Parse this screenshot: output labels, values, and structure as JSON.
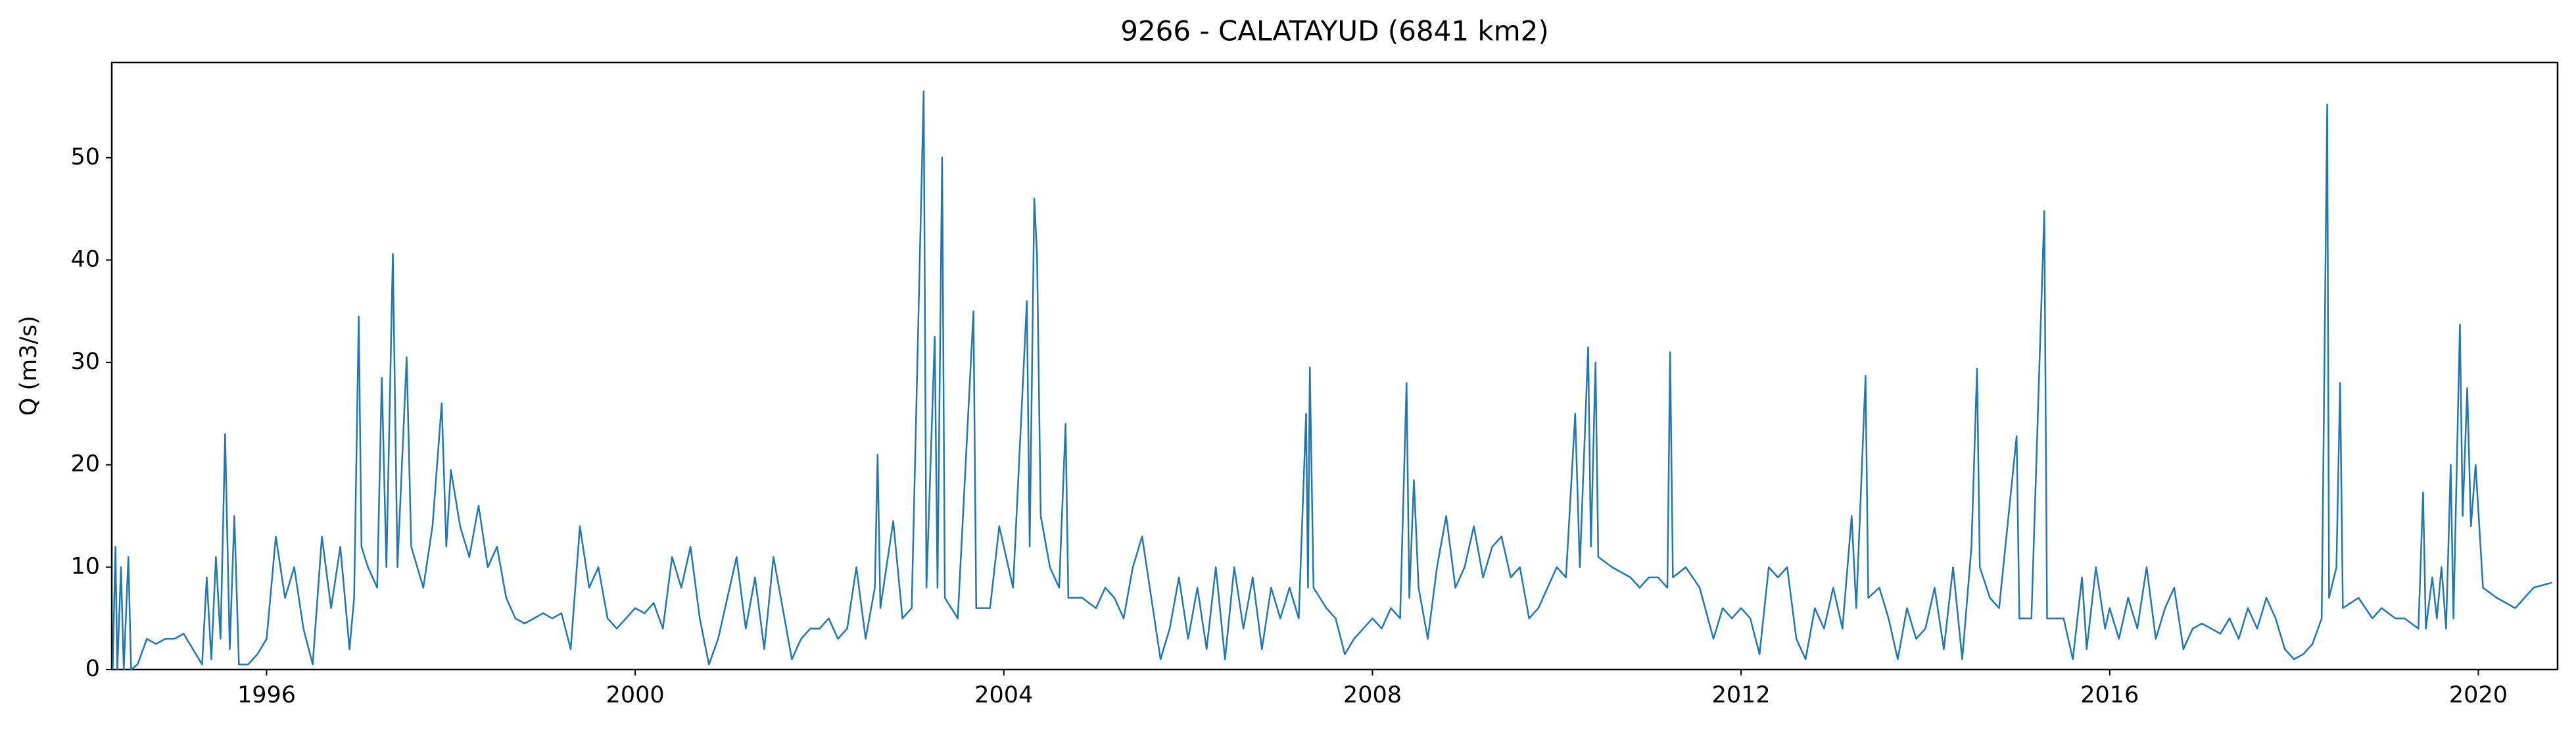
{
  "chart_data": {
    "type": "line",
    "title": "9266 - CALATAYUD (6841 km2)",
    "y_label": "Q (m3/s)",
    "color": "#1f77b4",
    "xlim": [
      1994.32,
      2020.86
    ],
    "xticks": [
      1996,
      2000,
      2004,
      2008,
      2012,
      2016,
      2020
    ],
    "ylim": [
      0,
      59.3
    ],
    "yticks": [
      0,
      10,
      20,
      30,
      40,
      50
    ],
    "x": [
      1994.33,
      1994.36,
      1994.38,
      1994.42,
      1994.45,
      1994.5,
      1994.53,
      1994.6,
      1994.7,
      1994.8,
      1994.9,
      1995.0,
      1995.1,
      1995.2,
      1995.3,
      1995.35,
      1995.4,
      1995.45,
      1995.5,
      1995.55,
      1995.6,
      1995.65,
      1995.7,
      1995.8,
      1995.9,
      1996.0,
      1996.1,
      1996.2,
      1996.3,
      1996.4,
      1996.5,
      1996.6,
      1996.7,
      1996.8,
      1996.9,
      1996.95,
      1997.0,
      1997.03,
      1997.1,
      1997.2,
      1997.25,
      1997.3,
      1997.37,
      1997.42,
      1997.52,
      1997.57,
      1997.7,
      1997.8,
      1997.9,
      1997.95,
      1998.0,
      1998.1,
      1998.2,
      1998.3,
      1998.4,
      1998.5,
      1998.6,
      1998.7,
      1998.8,
      1998.9,
      1999.0,
      1999.1,
      1999.2,
      1999.3,
      1999.4,
      1999.5,
      1999.6,
      1999.7,
      1999.8,
      1999.9,
      2000.0,
      2000.1,
      2000.2,
      2000.3,
      2000.4,
      2000.5,
      2000.6,
      2000.7,
      2000.8,
      2000.9,
      2001.0,
      2001.1,
      2001.2,
      2001.3,
      2001.4,
      2001.5,
      2001.6,
      2001.7,
      2001.8,
      2001.9,
      2002.0,
      2002.1,
      2002.2,
      2002.3,
      2002.4,
      2002.5,
      2002.6,
      2002.63,
      2002.66,
      2002.8,
      2002.9,
      2003.0,
      2003.13,
      2003.16,
      2003.25,
      2003.28,
      2003.33,
      2003.36,
      2003.5,
      2003.67,
      2003.7,
      2003.85,
      2003.95,
      2004.1,
      2004.25,
      2004.28,
      2004.33,
      2004.36,
      2004.4,
      2004.5,
      2004.6,
      2004.67,
      2004.7,
      2004.85,
      2005.0,
      2005.1,
      2005.2,
      2005.3,
      2005.4,
      2005.5,
      2005.6,
      2005.7,
      2005.8,
      2005.9,
      2006.0,
      2006.1,
      2006.2,
      2006.3,
      2006.4,
      2006.5,
      2006.6,
      2006.7,
      2006.8,
      2006.9,
      2007.0,
      2007.1,
      2007.2,
      2007.28,
      2007.3,
      2007.32,
      2007.36,
      2007.5,
      2007.6,
      2007.7,
      2007.8,
      2007.9,
      2008.0,
      2008.1,
      2008.2,
      2008.3,
      2008.37,
      2008.4,
      2008.45,
      2008.5,
      2008.6,
      2008.7,
      2008.8,
      2008.9,
      2009.0,
      2009.1,
      2009.2,
      2009.3,
      2009.4,
      2009.5,
      2009.6,
      2009.7,
      2009.8,
      2009.9,
      2010.0,
      2010.1,
      2010.2,
      2010.25,
      2010.34,
      2010.37,
      2010.42,
      2010.45,
      2010.6,
      2010.8,
      2010.9,
      2011.0,
      2011.1,
      2011.2,
      2011.23,
      2011.26,
      2011.4,
      2011.55,
      2011.7,
      2011.8,
      2011.9,
      2012.0,
      2012.1,
      2012.2,
      2012.3,
      2012.4,
      2012.5,
      2012.6,
      2012.7,
      2012.8,
      2012.9,
      2013.0,
      2013.1,
      2013.2,
      2013.25,
      2013.35,
      2013.38,
      2013.5,
      2013.6,
      2013.7,
      2013.8,
      2013.9,
      2014.0,
      2014.1,
      2014.2,
      2014.3,
      2014.4,
      2014.5,
      2014.56,
      2014.59,
      2014.7,
      2014.8,
      2014.99,
      2015.02,
      2015.15,
      2015.29,
      2015.32,
      2015.5,
      2015.6,
      2015.7,
      2015.75,
      2015.85,
      2015.95,
      2016.0,
      2016.1,
      2016.2,
      2016.3,
      2016.4,
      2016.5,
      2016.6,
      2016.7,
      2016.8,
      2016.9,
      2017.0,
      2017.1,
      2017.2,
      2017.3,
      2017.4,
      2017.5,
      2017.6,
      2017.7,
      2017.8,
      2017.9,
      2018.0,
      2018.1,
      2018.2,
      2018.3,
      2018.36,
      2018.38,
      2018.46,
      2018.5,
      2018.53,
      2018.7,
      2018.85,
      2018.95,
      2019.1,
      2019.2,
      2019.35,
      2019.4,
      2019.43,
      2019.5,
      2019.55,
      2019.6,
      2019.65,
      2019.7,
      2019.73,
      2019.8,
      2019.83,
      2019.88,
      2019.92,
      2019.97,
      2020.05,
      2020.2,
      2020.4,
      2020.6,
      2020.8
    ],
    "values": [
      0,
      12,
      0,
      10,
      0,
      11,
      0,
      0.5,
      3,
      2.5,
      3,
      3,
      3.5,
      2,
      0.5,
      9,
      1,
      11,
      3,
      23,
      2,
      15,
      0.5,
      0.5,
      1.5,
      3,
      13,
      7,
      10,
      4,
      0.5,
      13,
      6,
      12,
      2,
      7,
      34.5,
      12,
      10,
      8,
      28.5,
      10,
      40.6,
      10,
      30.5,
      12,
      8,
      14,
      26,
      12,
      19.5,
      14,
      11,
      16,
      10,
      12,
      7,
      5,
      4.5,
      5,
      5.5,
      5,
      5.5,
      2,
      14,
      8,
      10,
      5,
      4,
      5,
      6,
      5.5,
      6.5,
      4,
      11,
      8,
      12,
      5,
      0.5,
      3,
      7,
      11,
      4,
      9,
      2,
      11,
      6,
      1,
      3,
      4,
      4,
      5,
      3,
      4,
      10,
      3,
      8,
      21,
      6,
      14.5,
      5,
      6,
      56.5,
      8,
      32.5,
      8,
      50,
      7,
      5,
      35,
      6,
      6,
      14,
      8,
      36,
      12,
      46,
      40.5,
      15,
      10,
      8,
      24,
      7,
      7,
      6,
      8,
      7,
      5,
      10,
      13,
      7,
      1,
      4,
      9,
      3,
      8,
      2,
      10,
      1,
      10,
      4,
      9,
      2,
      8,
      5,
      8,
      5,
      25,
      8,
      29.5,
      8,
      6,
      5,
      1.5,
      3,
      4,
      5,
      4,
      6,
      5,
      28,
      7,
      18.5,
      8,
      3,
      10,
      15,
      8,
      10,
      14,
      9,
      12,
      13,
      9,
      10,
      5,
      6,
      8,
      10,
      9,
      25,
      10,
      31.5,
      12,
      30,
      11,
      10,
      9,
      8,
      9,
      9,
      8,
      31,
      9,
      10,
      8,
      3,
      6,
      5,
      6,
      5,
      1.5,
      10,
      9,
      10,
      3,
      1,
      6,
      4,
      8,
      4,
      15,
      6,
      28.7,
      7,
      8,
      5,
      1,
      6,
      3,
      4,
      8,
      2,
      10,
      1,
      12,
      29.4,
      10,
      7,
      6,
      22.8,
      5,
      5,
      44.8,
      5,
      5,
      1,
      9,
      2,
      10,
      4,
      6,
      3,
      7,
      4,
      10,
      3,
      6,
      8,
      2,
      4,
      4.5,
      4,
      3.5,
      5,
      3,
      6,
      4,
      7,
      5,
      2,
      1,
      1.5,
      2.5,
      5,
      55.2,
      7,
      10,
      28,
      6,
      7,
      5,
      6,
      5,
      5,
      4,
      17.3,
      4,
      9,
      5,
      10,
      4,
      20,
      5,
      33.7,
      15,
      27.5,
      14,
      20,
      8,
      7,
      6,
      8,
      8.5
    ]
  }
}
